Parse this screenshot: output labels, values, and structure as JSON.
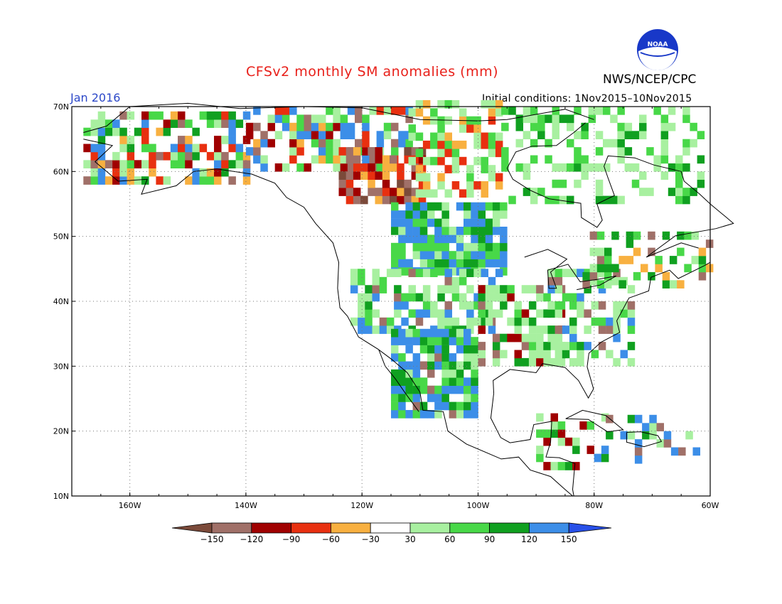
{
  "header": {
    "title": "CFSv2 monthly SM anomalies (mm)",
    "org": "NWS/NCEP/CPC",
    "month": "Jan 2016",
    "init": "Initial conditions: 1Nov2015–10Nov2015",
    "logo_text": "NOAA"
  },
  "colors": {
    "title": "#e8201a",
    "month": "#2c48c8"
  },
  "map": {
    "lon_range": [
      -170,
      -60
    ],
    "lat_range": [
      10,
      70
    ],
    "lon_ticks": [
      "160W",
      "140W",
      "120W",
      "100W",
      "80W",
      "60W"
    ],
    "lat_ticks": [
      "10N",
      "20N",
      "30N",
      "40N",
      "50N",
      "60N",
      "70N"
    ],
    "grid": "dotted"
  },
  "colorbar": {
    "labels": [
      "−150",
      "−120",
      "−90",
      "−60",
      "−30",
      "30",
      "60",
      "90",
      "120",
      "150"
    ],
    "colors": [
      "#7b4a3a",
      "#a07068",
      "#a00000",
      "#e83010",
      "#f8b040",
      "#ffffff",
      "#a8f0a0",
      "#48d848",
      "#10a020",
      "#3c8ee8",
      "#2850e8"
    ]
  }
}
